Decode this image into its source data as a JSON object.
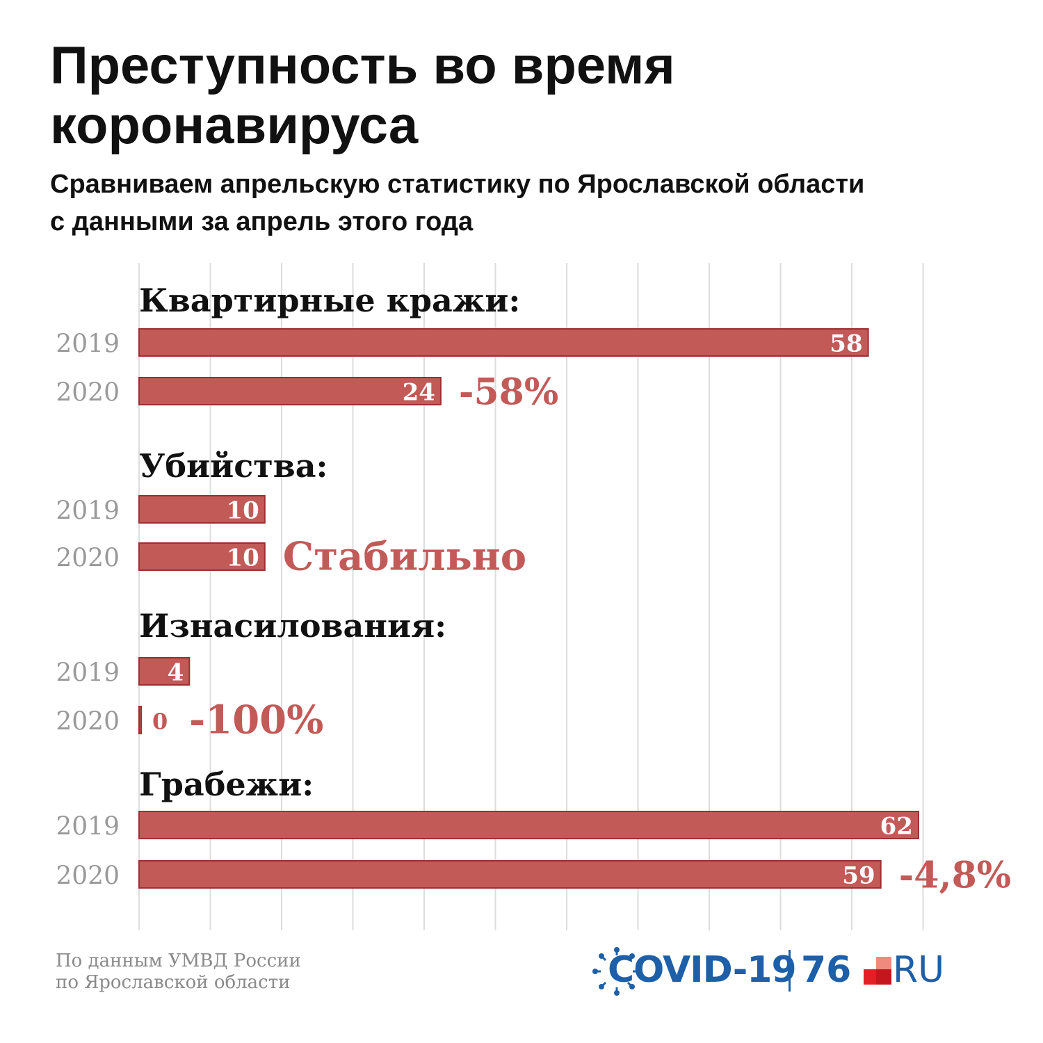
{
  "title_line1": "Преступность во время",
  "title_line2": "коронавируса",
  "subtitle_line1": "Сравниваем апрельскую статистику по Ярославской области",
  "subtitle_line2": "с данными за апрель этого года",
  "source_line1": "По данным УМВД России",
  "source_line2": "по Ярославской области",
  "logo": {
    "covid": "COVID-19",
    "number": "76",
    "ru": "RU"
  },
  "colors": {
    "bar_fill": "#c25a58",
    "bar_stroke": "#9c2f31",
    "change_text": "#c25a58",
    "year_text": "#999999",
    "grid": "#dddddd",
    "logo_blue": "#1d5fa8",
    "logo_red": "#e31e24"
  },
  "chart_data": {
    "type": "bar",
    "orientation": "horizontal",
    "xlim": [
      0,
      66
    ],
    "grid": true,
    "groups": [
      {
        "label": "Квартирные кражи:",
        "rows": [
          {
            "year": "2019",
            "value": 58
          },
          {
            "year": "2020",
            "value": 24
          }
        ],
        "change": "-58%"
      },
      {
        "label": "Убийства:",
        "rows": [
          {
            "year": "2019",
            "value": 10
          },
          {
            "year": "2020",
            "value": 10
          }
        ],
        "change": "Стабильно"
      },
      {
        "label": "Изнасилования:",
        "rows": [
          {
            "year": "2019",
            "value": 4
          },
          {
            "year": "2020",
            "value": 0
          }
        ],
        "change": "-100%"
      },
      {
        "label": "Грабежи:",
        "rows": [
          {
            "year": "2019",
            "value": 62
          },
          {
            "year": "2020",
            "value": 59
          }
        ],
        "change": "-4,8%"
      }
    ]
  }
}
